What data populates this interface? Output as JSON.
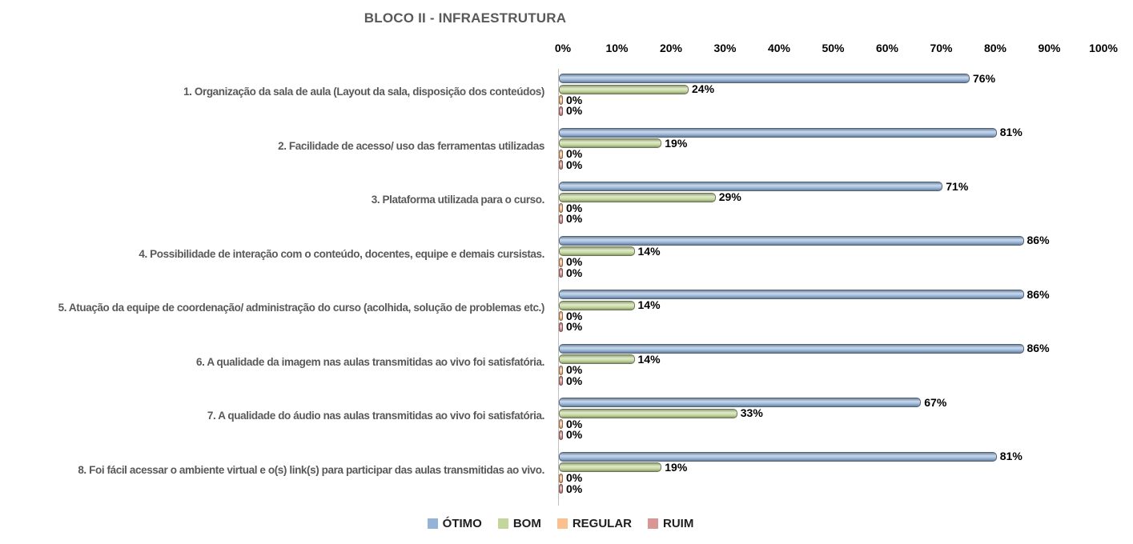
{
  "title": "BLOCO II - INFRAESTRUTURA",
  "chart_data": {
    "type": "bar",
    "orientation": "horizontal",
    "title": "BLOCO II - INFRAESTRUTURA",
    "xlabel": "",
    "ylabel": "",
    "xlim": [
      0,
      100
    ],
    "x_tick_step": 10,
    "x_ticks": [
      "0%",
      "10%",
      "20%",
      "30%",
      "40%",
      "50%",
      "60%",
      "70%",
      "80%",
      "90%",
      "100%"
    ],
    "grid": false,
    "legend_position": "bottom",
    "value_label_suffix": "%",
    "categories": [
      "1. Organização da sala de aula (Layout da sala, disposição dos conteúdos)",
      "2. Facilidade de acesso/ uso das ferramentas utilizadas",
      "3. Plataforma utilizada para o curso.",
      "4. Possibilidade de interação com o conteúdo, docentes, equipe e demais cursistas.",
      "5. Atuação da equipe de coordenação/ administração do curso (acolhida, solução de problemas etc.)",
      "6. A qualidade da imagem nas aulas transmitidas ao vivo foi satisfatória.",
      "7. A qualidade do áudio nas aulas transmitidas ao vivo foi satisfatória.",
      "8. Foi fácil acessar o ambiente virtual e o(s) link(s) para participar das aulas transmitidas ao vivo."
    ],
    "series": [
      {
        "name": "ÓTIMO",
        "color": "#95B3D7",
        "values": [
          76,
          81,
          71,
          86,
          86,
          86,
          67,
          81
        ]
      },
      {
        "name": "BOM",
        "color": "#C3D69B",
        "values": [
          24,
          19,
          29,
          14,
          14,
          14,
          33,
          19
        ]
      },
      {
        "name": "REGULAR",
        "color": "#FAC090",
        "values": [
          0,
          0,
          0,
          0,
          0,
          0,
          0,
          0
        ]
      },
      {
        "name": "RUIM",
        "color": "#D99694",
        "values": [
          0,
          0,
          0,
          0,
          0,
          0,
          0,
          0
        ]
      }
    ],
    "colors": {
      "title_text": "#595959",
      "category_text": "#595959",
      "tick_text": "#000000",
      "value_text": "#000000",
      "axis_line": "#bfbfbf",
      "background": "#ffffff"
    }
  }
}
